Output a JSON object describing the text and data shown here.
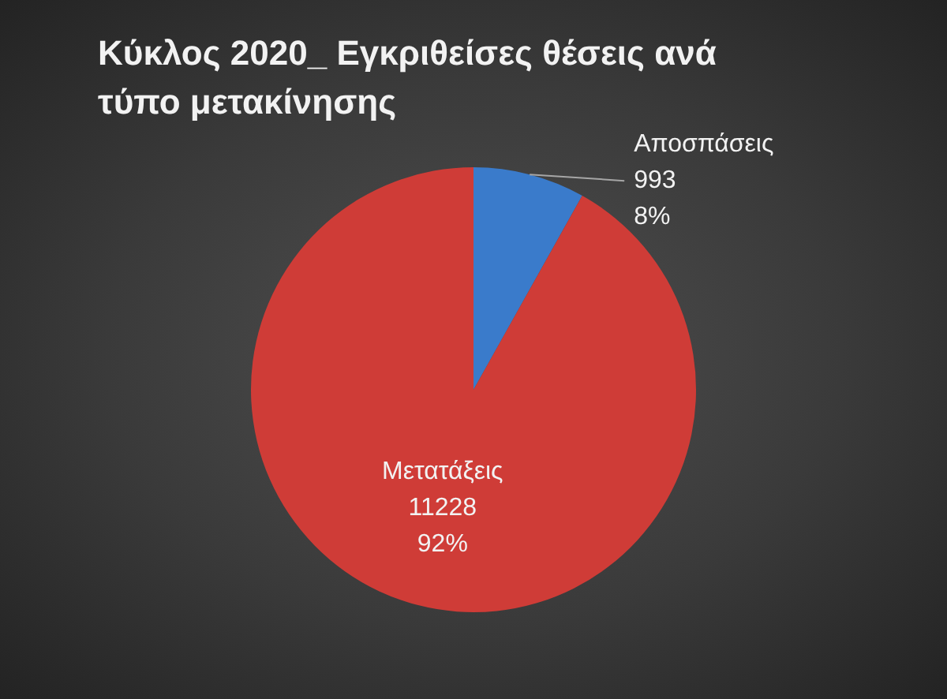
{
  "chart_data": {
    "type": "pie",
    "title": "Κύκλος 2020_ Εγκριθείσες θέσεις ανά τύπο μετακίνησης",
    "categories": [
      "Αποσπάσεις",
      "Μετατάξεις"
    ],
    "values": [
      993,
      11228
    ],
    "colors": [
      "#3a7bcb",
      "#cf3c37"
    ],
    "value_labels": [
      "993\n8%",
      "11228\n92%"
    ]
  }
}
